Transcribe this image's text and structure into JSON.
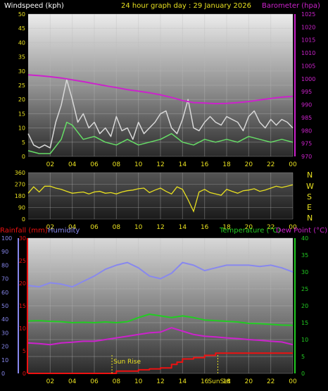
{
  "header": {
    "wind_label": "Windspeed (kph)",
    "title": "24 hour graph day : 29 January 2026",
    "baro_label": "Barometer (hpa)"
  },
  "compass": [
    "N",
    "W",
    "S",
    "E",
    "N"
  ],
  "bottom_labels": {
    "rain": "Rainfall (mm)",
    "humidity": "Humidity",
    "temp": "Temperature (°C)",
    "dew": "Dew Point (°C)",
    "sunrise": "Sun Rise",
    "sunset": "SunSet"
  },
  "colors": {
    "wind_gust": "#d8d8d8",
    "wind_avg": "#66dd66",
    "baro": "#cc22cc",
    "direction": "#e8e020",
    "rain": "#ee1111",
    "humidity": "#8888ee",
    "temp": "#22cc22",
    "dew": "#cc22cc",
    "axis_text": "#e8e020"
  },
  "chart_data": [
    {
      "type": "line",
      "x_ticks": [
        "02",
        "04",
        "06",
        "08",
        "10",
        "12",
        "14",
        "16",
        "18",
        "20",
        "22",
        "00"
      ],
      "y_left_ticks": [
        "0",
        "5",
        "10",
        "15",
        "20",
        "25",
        "30",
        "35",
        "40",
        "45",
        "50"
      ],
      "y_left_range": [
        0,
        50
      ],
      "y_right_ticks": [
        "970",
        "975",
        "980",
        "985",
        "990",
        "995",
        "1000",
        "1005",
        "1010",
        "1015",
        "1020",
        "1025"
      ],
      "y_right_range": [
        970,
        1025
      ],
      "series": [
        {
          "name": "Windspeed (kph)",
          "axis": "left",
          "style": "gust",
          "x": [
            0,
            0.5,
            1,
            1.5,
            2,
            2.5,
            3,
            3.5,
            4,
            4.5,
            5,
            5.5,
            6,
            6.5,
            7,
            7.5,
            8,
            8.5,
            9,
            9.5,
            10,
            10.5,
            11,
            11.5,
            12,
            12.5,
            13,
            13.5,
            14,
            14.5,
            15,
            15.5,
            16,
            16.5,
            17,
            17.5,
            18,
            18.5,
            19,
            19.5,
            20,
            20.5,
            21,
            21.5,
            22,
            22.5,
            23,
            23.5,
            24
          ],
          "values": [
            8,
            4,
            3,
            4,
            3,
            12,
            18,
            27,
            20,
            12,
            15,
            10,
            12,
            8,
            10,
            7,
            14,
            9,
            10,
            6,
            12,
            8,
            10,
            12,
            15,
            16,
            10,
            8,
            13,
            20,
            10,
            9,
            12,
            14,
            12,
            11,
            14,
            13,
            12,
            9,
            14,
            16,
            12,
            10,
            13,
            11,
            13,
            12,
            10
          ]
        },
        {
          "name": "Windspeed (kph)",
          "axis": "left",
          "style": "average",
          "x": [
            0,
            1,
            2,
            3,
            3.5,
            4,
            5,
            6,
            7,
            8,
            9,
            10,
            11,
            12,
            13,
            14,
            15,
            16,
            17,
            18,
            19,
            20,
            21,
            22,
            23,
            24
          ],
          "values": [
            2,
            1,
            1,
            6,
            12,
            11,
            6,
            7,
            5,
            4,
            6,
            4,
            5,
            6,
            8,
            5,
            4,
            6,
            5,
            6,
            5,
            7,
            6,
            5,
            6,
            5
          ]
        },
        {
          "name": "Barometer (hpa)",
          "axis": "right",
          "x": [
            0,
            1,
            2,
            3,
            4,
            5,
            6,
            7,
            8,
            9,
            10,
            11,
            12,
            13,
            14,
            15,
            16,
            17,
            18,
            19,
            20,
            21,
            22,
            23,
            24
          ],
          "values": [
            1001.5,
            1001.2,
            1000.8,
            1000.3,
            999.6,
            998.9,
            998.1,
            997.3,
            996.6,
            995.8,
            995.2,
            994.6,
            993.8,
            992.8,
            991.6,
            990.8,
            990.6,
            990.4,
            990.5,
            990.8,
            991.2,
            991.8,
            992.4,
            992.9,
            993.2
          ]
        }
      ]
    },
    {
      "type": "line",
      "x_ticks": [
        "02",
        "04",
        "06",
        "08",
        "10",
        "12",
        "14",
        "16",
        "18",
        "20",
        "22",
        "00"
      ],
      "y_ticks": [
        "0",
        "90",
        "180",
        "270",
        "360"
      ],
      "y_range": [
        0,
        360
      ],
      "series": [
        {
          "name": "Wind direction",
          "x": [
            0,
            0.5,
            1,
            1.5,
            2,
            2.5,
            3,
            3.5,
            4,
            4.5,
            5,
            5.5,
            6,
            6.5,
            7,
            7.5,
            8,
            8.5,
            9,
            9.5,
            10,
            10.5,
            11,
            11.5,
            12,
            12.5,
            13,
            13.5,
            14,
            14.5,
            15,
            15.5,
            16,
            16.5,
            17,
            17.5,
            18,
            18.5,
            19,
            19.5,
            20,
            20.5,
            21,
            21.5,
            22,
            22.5,
            23,
            23.5,
            24
          ],
          "values": [
            200,
            250,
            210,
            255,
            255,
            240,
            230,
            215,
            200,
            205,
            210,
            195,
            210,
            215,
            200,
            205,
            195,
            210,
            220,
            225,
            235,
            240,
            205,
            225,
            240,
            215,
            195,
            250,
            230,
            150,
            60,
            210,
            230,
            205,
            195,
            185,
            230,
            215,
            200,
            220,
            225,
            235,
            215,
            225,
            240,
            255,
            245,
            255,
            265
          ]
        }
      ]
    },
    {
      "type": "line",
      "x_ticks": [
        "02",
        "04",
        "06",
        "08",
        "10",
        "12",
        "14",
        "16",
        "18",
        "20",
        "22",
        "00"
      ],
      "y_left_rain_ticks": [
        "0",
        "5",
        "10",
        "15",
        "20",
        "25",
        "30"
      ],
      "y_left_rain_range": [
        0,
        30
      ],
      "y_left_humidity_ticks": [
        "0",
        "10",
        "20",
        "30",
        "40",
        "50",
        "60",
        "70",
        "80",
        "90",
        "100"
      ],
      "y_left_humidity_range": [
        0,
        100
      ],
      "y_right_ticks": [
        "0",
        "5",
        "10",
        "15",
        "20",
        "25",
        "30",
        "35",
        "40"
      ],
      "y_right_range": [
        0,
        40
      ],
      "series": [
        {
          "name": "Humidity",
          "axis": "humidity",
          "x": [
            0,
            1,
            2,
            3,
            4,
            5,
            6,
            7,
            8,
            9,
            10,
            11,
            12,
            13,
            14,
            15,
            16,
            17,
            18,
            19,
            20,
            21,
            22,
            23,
            24
          ],
          "values": [
            65,
            64,
            67,
            66,
            64,
            68,
            72,
            77,
            80,
            82,
            78,
            72,
            70,
            74,
            82,
            80,
            76,
            78,
            80,
            80,
            80,
            79,
            80,
            78,
            75
          ]
        },
        {
          "name": "Temperature (°C)",
          "axis": "temp",
          "x": [
            0,
            1,
            2,
            3,
            4,
            5,
            6,
            7,
            8,
            9,
            10,
            11,
            12,
            13,
            14,
            15,
            16,
            17,
            18,
            19,
            20,
            21,
            22,
            23,
            24
          ],
          "values": [
            15.5,
            15.6,
            15.4,
            15.3,
            15.0,
            15.1,
            15.0,
            15.2,
            15.0,
            15.3,
            16.5,
            17.5,
            17.0,
            16.5,
            17.0,
            16.5,
            15.8,
            15.6,
            15.4,
            15.2,
            14.8,
            14.7,
            14.5,
            14.3,
            14.2
          ]
        },
        {
          "name": "Dew Point (°C)",
          "axis": "temp",
          "x": [
            0,
            1,
            2,
            3,
            4,
            5,
            6,
            7,
            8,
            9,
            10,
            11,
            12,
            13,
            14,
            15,
            16,
            17,
            18,
            19,
            20,
            21,
            22,
            23,
            24
          ],
          "values": [
            9.0,
            8.8,
            8.5,
            9.0,
            9.2,
            9.5,
            9.5,
            10.0,
            10.5,
            11.0,
            11.5,
            12.0,
            12.2,
            13.5,
            12.5,
            11.5,
            11.0,
            10.8,
            10.5,
            10.3,
            10.0,
            9.8,
            9.5,
            9.3,
            8.5
          ]
        },
        {
          "name": "Rainfall (mm)",
          "axis": "rain",
          "step": true,
          "x": [
            0,
            6,
            7,
            8,
            9,
            10,
            11,
            12,
            13,
            13.5,
            14,
            15,
            16,
            17,
            18,
            19,
            20,
            21,
            22,
            23,
            24
          ],
          "values": [
            0,
            0,
            0,
            0.5,
            0.5,
            0.8,
            1.0,
            1.2,
            2.0,
            2.5,
            3.2,
            3.5,
            4.0,
            4.5,
            4.5,
            4.5,
            4.5,
            4.5,
            4.5,
            4.5,
            4.5
          ]
        }
      ],
      "markers": [
        {
          "label": "Sun Rise",
          "x": 7.6
        },
        {
          "label": "SunSet",
          "x": 17.2
        }
      ]
    }
  ]
}
